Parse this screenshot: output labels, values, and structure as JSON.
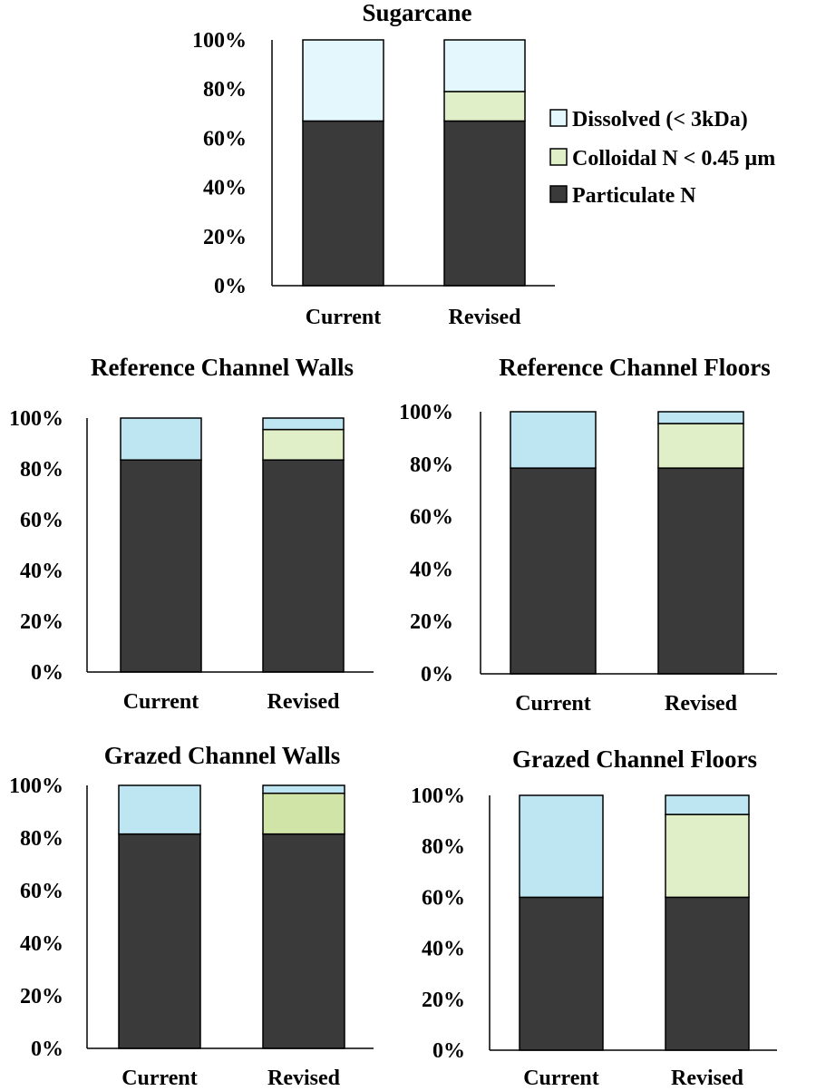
{
  "colors": {
    "particulate": "#3a3a3a",
    "colloidal": "#e1efc8",
    "colloidal_grazed_walls": "#cfe4a6",
    "dissolved_light": "#e4f7fc",
    "dissolved": "#bde6f2",
    "outline": "#000000"
  },
  "legend": {
    "items": [
      {
        "label": "Dissolved (< 3kDa)",
        "color": "#e4f7fc"
      },
      {
        "label": "Colloidal N < 0.45 µm",
        "color": "#e1efc8"
      },
      {
        "label": "Particulate N",
        "color": "#3a3a3a"
      }
    ]
  },
  "chart_data": [
    {
      "type": "bar",
      "stacked": true,
      "title": "Sugarcane",
      "categories": [
        "Current",
        "Revised"
      ],
      "yticks": [
        "0%",
        "20%",
        "40%",
        "60%",
        "80%",
        "100%"
      ],
      "ylim": [
        0,
        100
      ],
      "series": [
        {
          "name": "Particulate N",
          "values": [
            67,
            67
          ],
          "color": "#3a3a3a"
        },
        {
          "name": "Colloidal N < 0.45 µm",
          "values": [
            0,
            12
          ],
          "color": "#e1efc8"
        },
        {
          "name": "Dissolved (< 3kDa)",
          "values": [
            33,
            21
          ],
          "color": "#e4f7fc"
        }
      ]
    },
    {
      "type": "bar",
      "stacked": true,
      "title": "Reference Channel Walls",
      "categories": [
        "Current",
        "Revised"
      ],
      "yticks": [
        "0%",
        "20%",
        "40%",
        "60%",
        "80%",
        "100%"
      ],
      "ylim": [
        0,
        100
      ],
      "series": [
        {
          "name": "Particulate N",
          "values": [
            83.5,
            83.5
          ],
          "color": "#3a3a3a"
        },
        {
          "name": "Colloidal N < 0.45 µm",
          "values": [
            0,
            12
          ],
          "color": "#e1efc8"
        },
        {
          "name": "Dissolved (< 3kDa)",
          "values": [
            16.5,
            4.5
          ],
          "color": "#bde6f2"
        }
      ]
    },
    {
      "type": "bar",
      "stacked": true,
      "title": "Reference Channel Floors",
      "categories": [
        "Current",
        "Revised"
      ],
      "yticks": [
        "0%",
        "20%",
        "40%",
        "60%",
        "80%",
        "100%"
      ],
      "ylim": [
        0,
        100
      ],
      "series": [
        {
          "name": "Particulate N",
          "values": [
            78.5,
            78.5
          ],
          "color": "#3a3a3a"
        },
        {
          "name": "Colloidal N < 0.45 µm",
          "values": [
            0,
            17
          ],
          "color": "#e1efc8"
        },
        {
          "name": "Dissolved (< 3kDa)",
          "values": [
            21.5,
            4.5
          ],
          "color": "#bde6f2"
        }
      ]
    },
    {
      "type": "bar",
      "stacked": true,
      "title": "Grazed  Channel Walls",
      "categories": [
        "Current",
        "Revised"
      ],
      "yticks": [
        "0%",
        "20%",
        "40%",
        "60%",
        "80%",
        "100%"
      ],
      "ylim": [
        0,
        100
      ],
      "series": [
        {
          "name": "Particulate N",
          "values": [
            81.5,
            81.5
          ],
          "color": "#3a3a3a"
        },
        {
          "name": "Colloidal N < 0.45 µm",
          "values": [
            0,
            15.5
          ],
          "color": "#cfe4a6"
        },
        {
          "name": "Dissolved (< 3kDa)",
          "values": [
            18.5,
            3
          ],
          "color": "#bde6f2"
        }
      ]
    },
    {
      "type": "bar",
      "stacked": true,
      "title": "Grazed  Channel Floors",
      "categories": [
        "Current",
        "Revised"
      ],
      "yticks": [
        "0%",
        "20%",
        "40%",
        "60%",
        "80%",
        "100%"
      ],
      "ylim": [
        0,
        100
      ],
      "series": [
        {
          "name": "Particulate N",
          "values": [
            60,
            60
          ],
          "color": "#3a3a3a"
        },
        {
          "name": "Colloidal N < 0.45 µm",
          "values": [
            0,
            32.5
          ],
          "color": "#e1efc8"
        },
        {
          "name": "Dissolved (< 3kDa)",
          "values": [
            40,
            7.5
          ],
          "color": "#bde6f2"
        }
      ]
    }
  ]
}
